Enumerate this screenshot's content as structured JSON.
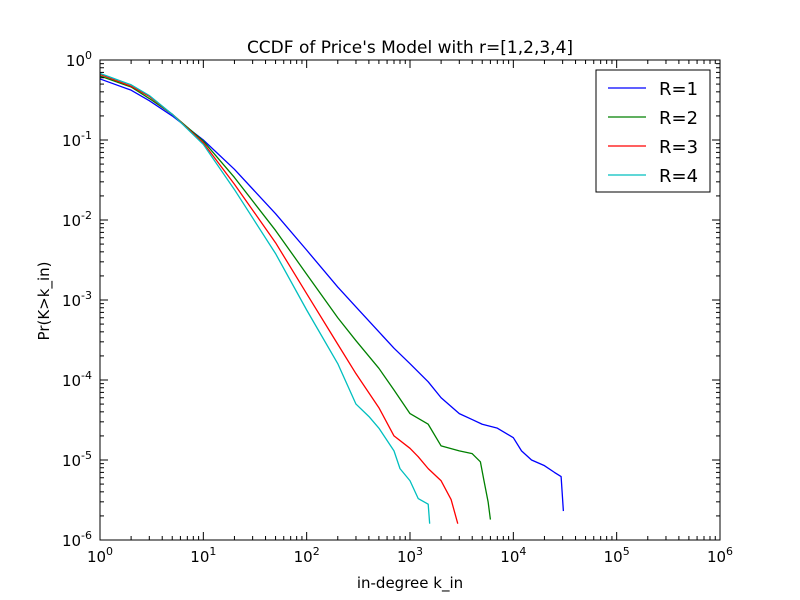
{
  "chart_data": {
    "type": "line",
    "title": "CCDF of Price's Model with r=[1,2,3,4]",
    "xlabel": "in-degree k_in",
    "ylabel": "Pr(K>k_in)",
    "xscale": "log",
    "yscale": "log",
    "xlim": [
      1,
      1000000
    ],
    "ylim": [
      1e-06,
      1
    ],
    "grid": false,
    "legend_position": "top-right",
    "x_ticks": [
      {
        "base": "10",
        "exp": "0",
        "value": 1
      },
      {
        "base": "10",
        "exp": "1",
        "value": 10
      },
      {
        "base": "10",
        "exp": "2",
        "value": 100
      },
      {
        "base": "10",
        "exp": "3",
        "value": 1000
      },
      {
        "base": "10",
        "exp": "4",
        "value": 10000
      },
      {
        "base": "10",
        "exp": "5",
        "value": 100000
      },
      {
        "base": "10",
        "exp": "6",
        "value": 1000000
      }
    ],
    "y_ticks": [
      {
        "base": "10",
        "exp": "0",
        "value": 1
      },
      {
        "base": "10",
        "exp": "-1",
        "value": 0.1
      },
      {
        "base": "10",
        "exp": "-2",
        "value": 0.01
      },
      {
        "base": "10",
        "exp": "-3",
        "value": 0.001
      },
      {
        "base": "10",
        "exp": "-4",
        "value": 0.0001
      },
      {
        "base": "10",
        "exp": "-5",
        "value": 1e-05
      },
      {
        "base": "10",
        "exp": "-6",
        "value": 1e-06
      }
    ],
    "series": [
      {
        "name": "R=1",
        "color": "#0000ff",
        "x": [
          1,
          2,
          3,
          5,
          10,
          20,
          50,
          100,
          200,
          300,
          500,
          700,
          1000,
          1500,
          2000,
          3000,
          4000,
          5000,
          7000,
          10000,
          12000,
          15000,
          20000,
          25000,
          29000,
          30500
        ],
        "y": [
          0.58,
          0.42,
          0.31,
          0.2,
          0.1,
          0.043,
          0.012,
          0.0042,
          0.00145,
          0.00082,
          0.0004,
          0.00025,
          0.00016,
          9.5e-05,
          6e-05,
          3.8e-05,
          3.2e-05,
          2.8e-05,
          2.5e-05,
          1.9e-05,
          1.3e-05,
          1e-05,
          8.5e-06,
          7e-06,
          6.2e-06,
          2.3e-06
        ]
      },
      {
        "name": "R=2",
        "color": "#008000",
        "x": [
          1,
          2,
          3,
          5,
          10,
          20,
          50,
          100,
          200,
          300,
          500,
          700,
          1000,
          1500,
          2000,
          3000,
          4000,
          4800,
          5200,
          5700,
          6000
        ],
        "y": [
          0.63,
          0.46,
          0.33,
          0.21,
          0.097,
          0.034,
          0.0074,
          0.0021,
          0.0006,
          0.00031,
          0.00014,
          7.5e-05,
          3.8e-05,
          2.8e-05,
          1.5e-05,
          1.3e-05,
          1.2e-05,
          9.5e-06,
          5.5e-06,
          3e-06,
          1.8e-06
        ]
      },
      {
        "name": "R=3",
        "color": "#ff0000",
        "x": [
          1,
          2,
          3,
          5,
          10,
          20,
          50,
          100,
          200,
          300,
          500,
          700,
          1000,
          1200,
          1500,
          2000,
          2500,
          2900
        ],
        "y": [
          0.66,
          0.47,
          0.35,
          0.21,
          0.092,
          0.028,
          0.0052,
          0.0012,
          0.00028,
          0.00012,
          4.5e-05,
          2e-05,
          1.4e-05,
          1.1e-05,
          7.8e-06,
          5.5e-06,
          3.2e-06,
          1.6e-06
        ]
      },
      {
        "name": "R=4",
        "color": "#00bfbf",
        "x": [
          1,
          2,
          3,
          5,
          10,
          20,
          50,
          100,
          200,
          300,
          400,
          500,
          700,
          800,
          1000,
          1200,
          1500,
          1550
        ],
        "y": [
          0.68,
          0.49,
          0.36,
          0.21,
          0.088,
          0.024,
          0.0038,
          0.00075,
          0.00016,
          5e-05,
          3.5e-05,
          2.5e-05,
          1.3e-05,
          7.8e-06,
          5.5e-06,
          3.3e-06,
          2.8e-06,
          1.6e-06
        ]
      }
    ]
  }
}
